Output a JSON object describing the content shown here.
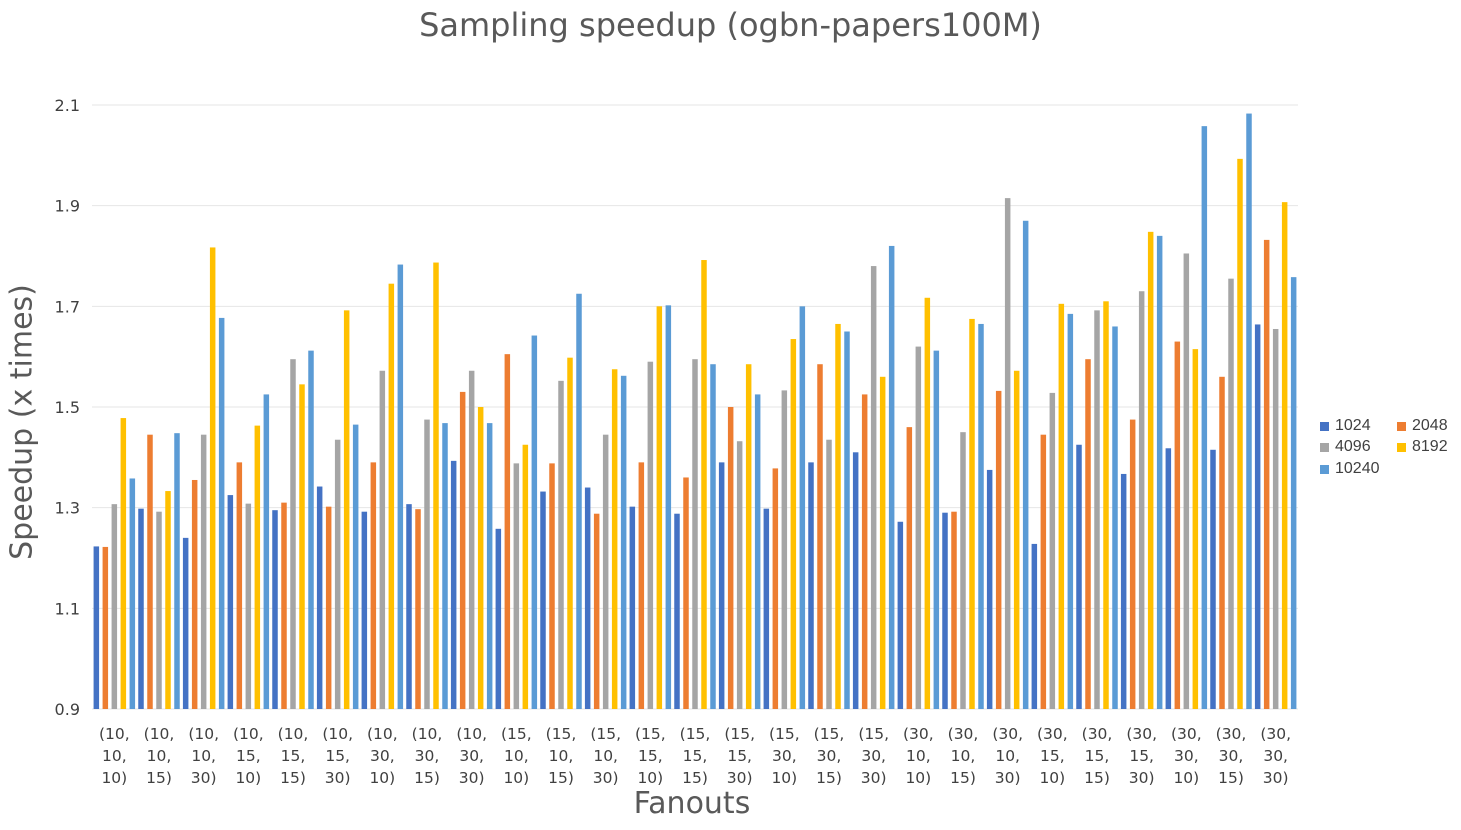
{
  "chart_data": {
    "type": "bar",
    "title": "Sampling speedup (ogbn-papers100M)",
    "xlabel": "Fanouts",
    "ylabel": "Speedup (x times)",
    "ylim": [
      0.9,
      2.1
    ],
    "yticks": [
      "0.9",
      "1.1",
      "1.3",
      "1.5",
      "1.7",
      "1.9",
      "2.1"
    ],
    "grid": true,
    "legend_position": "right",
    "categories": [
      [
        "(10,",
        "10,",
        "10)"
      ],
      [
        "(10,",
        "10,",
        "15)"
      ],
      [
        "(10,",
        "10,",
        "30)"
      ],
      [
        "(10,",
        "15,",
        "10)"
      ],
      [
        "(10,",
        "15,",
        "15)"
      ],
      [
        "(10,",
        "15,",
        "30)"
      ],
      [
        "(10,",
        "30,",
        "10)"
      ],
      [
        "(10,",
        "30,",
        "15)"
      ],
      [
        "(10,",
        "30,",
        "30)"
      ],
      [
        "(15,",
        "10,",
        "10)"
      ],
      [
        "(15,",
        "10,",
        "15)"
      ],
      [
        "(15,",
        "10,",
        "30)"
      ],
      [
        "(15,",
        "15,",
        "10)"
      ],
      [
        "(15,",
        "15,",
        "15)"
      ],
      [
        "(15,",
        "15,",
        "30)"
      ],
      [
        "(15,",
        "30,",
        "10)"
      ],
      [
        "(15,",
        "30,",
        "15)"
      ],
      [
        "(15,",
        "30,",
        "30)"
      ],
      [
        "(30,",
        "10,",
        "10)"
      ],
      [
        "(30,",
        "10,",
        "15)"
      ],
      [
        "(30,",
        "10,",
        "30)"
      ],
      [
        "(30,",
        "15,",
        "10)"
      ],
      [
        "(30,",
        "15,",
        "15)"
      ],
      [
        "(30,",
        "15,",
        "30)"
      ],
      [
        "(30,",
        "30,",
        "10)"
      ],
      [
        "(30,",
        "30,",
        "15)"
      ],
      [
        "(30,",
        "30,",
        "30)"
      ]
    ],
    "series": [
      {
        "name": "1024",
        "color": "#4472C4",
        "values": [
          1.223,
          1.298,
          1.24,
          1.325,
          1.295,
          1.342,
          1.292,
          1.307,
          1.393,
          1.258,
          1.332,
          1.34,
          1.302,
          1.288,
          1.39,
          1.298,
          1.39,
          1.41,
          1.272,
          1.29,
          1.375,
          1.228,
          1.425,
          1.367,
          1.418,
          1.415,
          1.664
        ]
      },
      {
        "name": "2048",
        "color": "#ED7D31",
        "values": [
          1.222,
          1.445,
          1.355,
          1.39,
          1.31,
          1.302,
          1.39,
          1.297,
          1.53,
          1.605,
          1.388,
          1.288,
          1.39,
          1.36,
          1.5,
          1.378,
          1.585,
          1.525,
          1.46,
          1.292,
          1.532,
          1.445,
          1.595,
          1.475,
          1.63,
          1.56,
          1.832
        ]
      },
      {
        "name": "4096",
        "color": "#A5A5A5",
        "values": [
          1.307,
          1.292,
          1.445,
          1.308,
          1.595,
          1.435,
          1.572,
          1.475,
          1.572,
          1.388,
          1.552,
          1.445,
          1.59,
          1.595,
          1.432,
          1.533,
          1.435,
          1.78,
          1.62,
          1.45,
          1.915,
          1.528,
          1.692,
          1.73,
          1.805,
          1.755,
          1.655
        ]
      },
      {
        "name": "8192",
        "color": "#FFC000",
        "values": [
          1.478,
          1.333,
          1.817,
          1.463,
          1.545,
          1.692,
          1.745,
          1.787,
          1.5,
          1.425,
          1.598,
          1.575,
          1.7,
          1.792,
          1.585,
          1.635,
          1.665,
          1.56,
          1.717,
          1.675,
          1.572,
          1.705,
          1.71,
          1.848,
          1.615,
          1.993,
          1.907
        ]
      },
      {
        "name": "10240",
        "color": "#5B9BD5",
        "values": [
          1.358,
          1.448,
          1.677,
          1.525,
          1.612,
          1.465,
          1.783,
          1.468,
          1.468,
          1.642,
          1.725,
          1.562,
          1.702,
          1.585,
          1.525,
          1.7,
          1.65,
          1.82,
          1.612,
          1.665,
          1.87,
          1.685,
          1.66,
          1.84,
          2.058,
          2.083,
          1.758
        ]
      }
    ]
  }
}
